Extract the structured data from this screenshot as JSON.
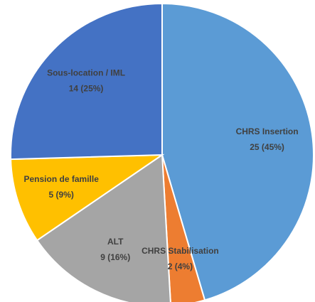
{
  "chart_data": {
    "type": "pie",
    "categories": [
      "CHRS Insertion",
      "CHRS Stabilisation",
      "ALT",
      "Pension de famille",
      "Sous-location / IML"
    ],
    "values": [
      25,
      2,
      9,
      5,
      14
    ],
    "value_labels": [
      "25 (45%)",
      "2 (4%)",
      "9 (16%)",
      "5 (9%)",
      "14 (25%)"
    ],
    "colors": [
      "#5b9bd5",
      "#ed7d31",
      "#a5a5a5",
      "#ffc000",
      "#4472c4"
    ]
  }
}
